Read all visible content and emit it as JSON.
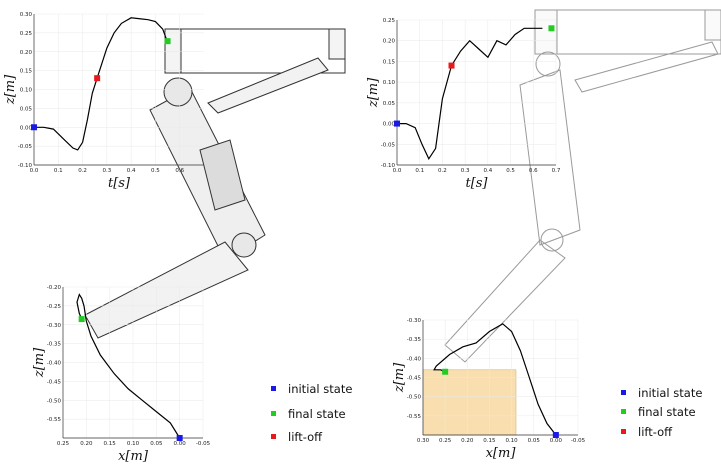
{
  "colors": {
    "initial": "#1a1ae6",
    "final": "#22cc22",
    "liftoff": "#e61a1a",
    "obstacle": "#f9dfb0",
    "robot_solid": "#333333",
    "robot_ghost": "#9a9a9a"
  },
  "icons": [
    "robot-leg-drawing",
    "robot-leg-ghost-drawing"
  ],
  "legend": {
    "initial": "initial state",
    "final": "final state",
    "liftoff": "lift-off"
  },
  "chart_data": [
    {
      "panel": "left-top",
      "type": "line",
      "xlabel": "t[s]",
      "ylabel": "z[m]",
      "xlim": [
        0.0,
        0.7
      ],
      "ylim": [
        -0.1,
        0.3
      ],
      "x_ticks": [
        "0.0",
        "0.1",
        "0.2",
        "0.3",
        "0.4",
        "0.5",
        "0.6"
      ],
      "y_ticks": [
        "-0.10",
        "-0.05",
        "0.00",
        "0.05",
        "0.10",
        "0.15",
        "0.20",
        "0.25",
        "0.30"
      ],
      "series": [
        {
          "x": [
            0.0,
            0.04,
            0.08,
            0.12,
            0.16,
            0.18,
            0.2,
            0.22,
            0.24,
            0.26,
            0.28,
            0.3,
            0.33,
            0.36,
            0.4,
            0.44,
            0.47,
            0.5,
            0.53,
            0.55
          ],
          "y": [
            0.0,
            0.0,
            -0.005,
            -0.03,
            -0.055,
            -0.06,
            -0.04,
            0.02,
            0.09,
            0.13,
            0.17,
            0.21,
            0.25,
            0.275,
            0.29,
            0.287,
            0.285,
            0.28,
            0.26,
            0.225
          ]
        }
      ],
      "markers": {
        "initial": [
          0.0,
          0.0
        ],
        "liftoff": [
          0.26,
          0.13
        ],
        "final": [
          0.55,
          0.228
        ]
      }
    },
    {
      "panel": "left-bottom",
      "type": "line",
      "xlabel": "x[m]",
      "ylabel": "z[m]",
      "xlim": [
        0.25,
        -0.05
      ],
      "ylim": [
        -0.6,
        -0.2
      ],
      "x_ticks": [
        "0.25",
        "0.20",
        "0.15",
        "0.10",
        "0.05",
        "0.00",
        "-0.05"
      ],
      "y_ticks": [
        "-0.20",
        "-0.25",
        "-0.30",
        "-0.35",
        "-0.40",
        "-0.45",
        "-0.50",
        "-0.55"
      ],
      "series": [
        {
          "x": [
            0.0,
            0.02,
            0.05,
            0.08,
            0.11,
            0.14,
            0.17,
            0.19,
            0.2,
            0.205,
            0.21,
            0.215,
            0.22,
            0.215,
            0.21
          ],
          "y": [
            -0.6,
            -0.56,
            -0.53,
            -0.5,
            -0.47,
            -0.43,
            -0.38,
            -0.33,
            -0.29,
            -0.25,
            -0.23,
            -0.22,
            -0.24,
            -0.27,
            -0.285
          ]
        }
      ],
      "markers": {
        "initial": [
          0.0,
          -0.6
        ],
        "final": [
          0.21,
          -0.285
        ]
      }
    },
    {
      "panel": "right-top",
      "type": "line",
      "xlabel": "t[s]",
      "ylabel": "z[m]",
      "xlim": [
        0.0,
        0.7
      ],
      "ylim": [
        -0.1,
        0.25
      ],
      "x_ticks": [
        "0.0",
        "0.1",
        "0.2",
        "0.3",
        "0.4",
        "0.5",
        "0.6",
        "0.7"
      ],
      "y_ticks": [
        "-0.10",
        "-0.05",
        "0.00",
        "0.05",
        "0.10",
        "0.15",
        "0.20",
        "0.25"
      ],
      "series": [
        {
          "x": [
            0.0,
            0.04,
            0.08,
            0.11,
            0.14,
            0.17,
            0.2,
            0.24,
            0.28,
            0.32,
            0.36,
            0.4,
            0.44,
            0.48,
            0.52,
            0.56,
            0.6,
            0.64
          ],
          "y": [
            0.0,
            0.0,
            -0.01,
            -0.05,
            -0.085,
            -0.06,
            0.06,
            0.14,
            0.175,
            0.2,
            0.18,
            0.16,
            0.2,
            0.19,
            0.215,
            0.23,
            0.23,
            0.23
          ]
        }
      ],
      "markers": {
        "initial": [
          0.0,
          0.0
        ],
        "liftoff": [
          0.24,
          0.14
        ],
        "final": [
          0.68,
          0.23
        ]
      }
    },
    {
      "panel": "right-bottom",
      "type": "line",
      "xlabel": "x[m]",
      "ylabel": "z[m]",
      "xlim": [
        0.3,
        -0.05
      ],
      "ylim": [
        -0.6,
        -0.3
      ],
      "x_ticks": [
        "0.30",
        "0.25",
        "0.20",
        "0.15",
        "0.10",
        "0.05",
        "0.00",
        "-0.05"
      ],
      "y_ticks": [
        "-0.30",
        "-0.35",
        "-0.40",
        "-0.45",
        "-0.50",
        "-0.55"
      ],
      "series": [
        {
          "x": [
            0.0,
            0.02,
            0.04,
            0.06,
            0.08,
            0.1,
            0.12,
            0.15,
            0.18,
            0.21,
            0.24,
            0.27,
            0.275,
            0.26,
            0.25
          ],
          "y": [
            -0.6,
            -0.57,
            -0.52,
            -0.45,
            -0.38,
            -0.33,
            -0.31,
            -0.33,
            -0.36,
            -0.37,
            -0.39,
            -0.42,
            -0.43,
            -0.43,
            -0.435
          ]
        }
      ],
      "markers": {
        "initial": [
          0.0,
          -0.6
        ],
        "final": [
          0.25,
          -0.435
        ]
      },
      "obstacle": {
        "x": [
          0.3,
          0.09
        ],
        "z": [
          -0.6,
          -0.43
        ]
      }
    }
  ]
}
